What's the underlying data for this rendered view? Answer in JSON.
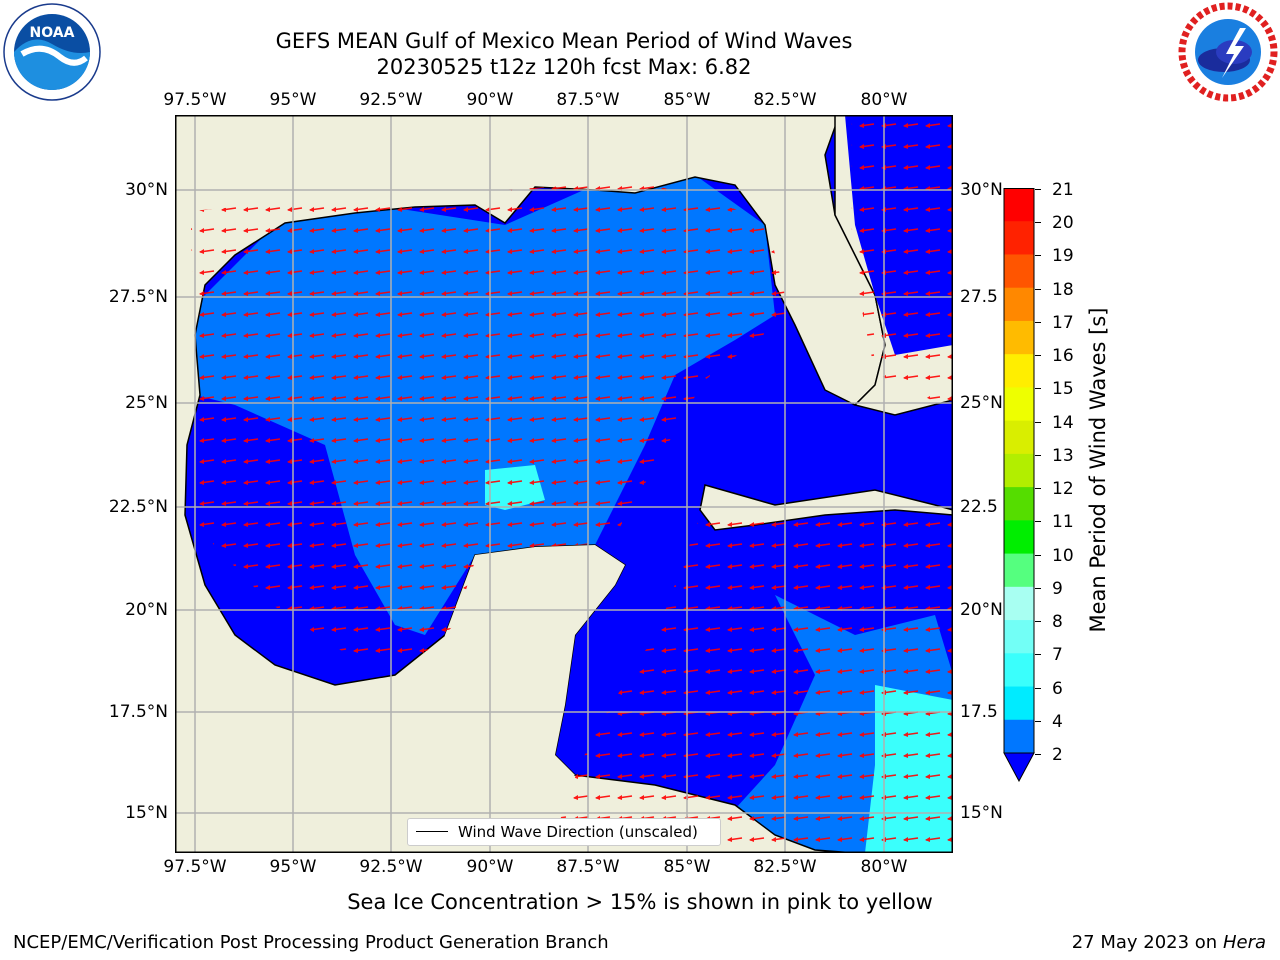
{
  "header": {
    "title_line1": "GEFS MEAN Gulf of Mexico Mean Period of Wind Waves",
    "title_line2": "20230525 t12z 120h fcst   Max: 6.82"
  },
  "logos": {
    "left": "noaa-logo",
    "right": "national-weather-service-logo"
  },
  "map": {
    "lon_ticks": [
      "97.5°W",
      "95°W",
      "92.5°W",
      "90°W",
      "87.5°W",
      "85°W",
      "82.5°W",
      "80°W"
    ],
    "lat_ticks_left": [
      "30°N",
      "27.5°N",
      "25°N",
      "22.5°N",
      "20°N",
      "17.5°N",
      "15°N"
    ],
    "lat_ticks_right": [
      "30°N",
      "27.5",
      "25°N",
      "22.5",
      "20°N",
      "17.5",
      "15°N"
    ],
    "legend_label": "Wind Wave Direction (unscaled)",
    "land_color": "#efefdc",
    "arrow_color": "#ff0000",
    "grid_color": "#b0b0b0"
  },
  "colorbar": {
    "title": "Mean Period of Wind Waves [s]",
    "levels": [
      "2",
      "4",
      "6",
      "7",
      "8",
      "9",
      "10",
      "11",
      "12",
      "13",
      "14",
      "15",
      "16",
      "17",
      "18",
      "19",
      "20",
      "21"
    ],
    "colors": [
      "#0000ff",
      "#0077ff",
      "#00ebff",
      "#3afffc",
      "#72fff6",
      "#a8fff2",
      "#55ff7f",
      "#00ee00",
      "#55dd00",
      "#b2ee00",
      "#d9ee00",
      "#eeff00",
      "#ffee00",
      "#ffbb00",
      "#ff8800",
      "#ff5500",
      "#ff2200",
      "#ff0000"
    ]
  },
  "footer": {
    "ice_note": "Sea Ice Concentration > 15% is shown in pink to yellow",
    "branch": "NCEP/EMC/Verification Post Processing Product Generation Branch",
    "date": "27 May 2023 on",
    "machine": "Hera"
  }
}
